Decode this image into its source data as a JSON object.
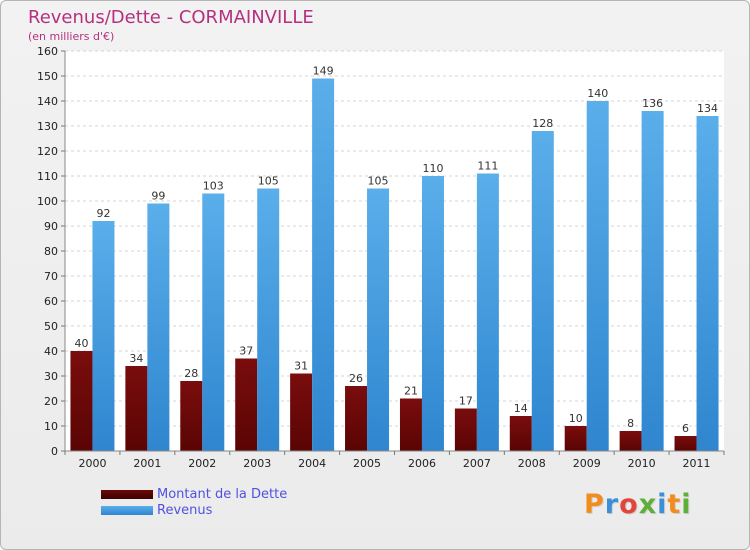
{
  "title": "Revenus/Dette - CORMAINVILLE",
  "subtitle": "(en milliers d'€)",
  "logo_text": "Proxiti",
  "colors": {
    "title": "#b5317f",
    "debt": "#7a0d0d",
    "revenue": "#4aa3e6",
    "legend_text": "#5151e0"
  },
  "chart_data": {
    "type": "bar",
    "categories": [
      "2000",
      "2001",
      "2002",
      "2003",
      "2004",
      "2005",
      "2006",
      "2007",
      "2008",
      "2009",
      "2010",
      "2011"
    ],
    "series": [
      {
        "name": "Montant de la Dette",
        "values": [
          40,
          34,
          28,
          37,
          31,
          26,
          21,
          17,
          14,
          10,
          8,
          6
        ]
      },
      {
        "name": "Revenus",
        "values": [
          92,
          99,
          103,
          105,
          149,
          105,
          110,
          111,
          128,
          140,
          136,
          134
        ]
      }
    ],
    "title": "Revenus/Dette - CORMAINVILLE",
    "subtitle": "(en milliers d'€)",
    "ylim": [
      0,
      160
    ],
    "yticks": [
      0,
      10,
      20,
      30,
      40,
      50,
      60,
      70,
      80,
      90,
      100,
      110,
      120,
      130,
      140,
      150,
      160
    ],
    "grid": true,
    "legend_position": "bottom-left"
  }
}
